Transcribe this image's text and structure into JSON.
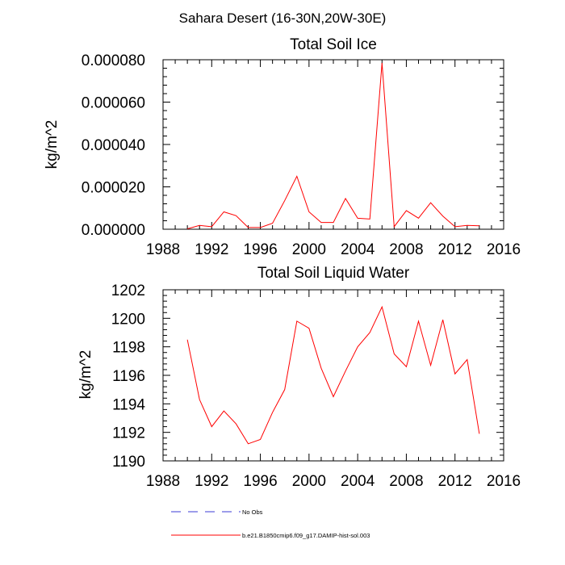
{
  "suptitle": "Sahara Desert (16-30N,20W-30E)",
  "legend": {
    "items": [
      {
        "label": "No Obs",
        "color": "#3b3bd6",
        "style": "dashed"
      },
      {
        "label": "b.e21.B1850cmip6.f09_g17.DAMIP-hist-sol.003",
        "color": "#ff0000",
        "style": "solid"
      }
    ]
  },
  "chart_data": [
    {
      "type": "line",
      "title": "Total Soil Ice",
      "ylabel": "kg/m^2",
      "xlabel": "",
      "xlim": [
        1988,
        2016
      ],
      "ylim": [
        0,
        8e-05
      ],
      "xticks": [
        1988,
        1992,
        1996,
        2000,
        2004,
        2008,
        2012,
        2016
      ],
      "xtick_labels": [
        "1988",
        "1992",
        "1996",
        "2000",
        "2004",
        "2008",
        "2012",
        "2016"
      ],
      "yticks": [
        0,
        2e-05,
        4e-05,
        6e-05,
        8e-05
      ],
      "ytick_labels": [
        "0.000000",
        "0.000020",
        "0.000040",
        "0.000060",
        "0.000080"
      ],
      "grid": false,
      "series": [
        {
          "name": "b.e21.B1850cmip6.f09_g17.DAMIP-hist-sol.003",
          "color": "#ff0000",
          "x": [
            1990,
            1991,
            1992,
            1993,
            1994,
            1995,
            1996,
            1997,
            1998,
            1999,
            2000,
            2001,
            2002,
            2003,
            2004,
            2005,
            2006,
            2007,
            2008,
            2009,
            2010,
            2011,
            2012,
            2013,
            2014
          ],
          "y": [
            2e-07,
            1.8e-06,
            1.2e-06,
            8.2e-06,
            6.4e-06,
            8e-07,
            8e-07,
            2.8e-06,
            1.35e-05,
            2.5e-05,
            8.2e-06,
            3.2e-06,
            3.2e-06,
            1.45e-05,
            5.2e-06,
            4.8e-06,
            7.85e-05,
            1.2e-06,
            8.8e-06,
            5.2e-06,
            1.25e-05,
            6.2e-06,
            1.2e-06,
            1.8e-06,
            1.6e-06
          ]
        }
      ]
    },
    {
      "type": "line",
      "title": "Total Soil Liquid Water",
      "ylabel": "kg/m^2",
      "xlabel": "",
      "xlim": [
        1988,
        2016
      ],
      "ylim": [
        1190,
        1202
      ],
      "xticks": [
        1988,
        1992,
        1996,
        2000,
        2004,
        2008,
        2012,
        2016
      ],
      "xtick_labels": [
        "1988",
        "1992",
        "1996",
        "2000",
        "2004",
        "2008",
        "2012",
        "2016"
      ],
      "yticks": [
        1190,
        1192,
        1194,
        1196,
        1198,
        1200,
        1202
      ],
      "ytick_labels": [
        "1190",
        "1192",
        "1194",
        "1196",
        "1198",
        "1200",
        "1202"
      ],
      "grid": false,
      "series": [
        {
          "name": "b.e21.B1850cmip6.f09_g17.DAMIP-hist-sol.003",
          "color": "#ff0000",
          "x": [
            1990,
            1991,
            1992,
            1993,
            1994,
            1995,
            1996,
            1997,
            1998,
            1999,
            2000,
            2001,
            2002,
            2003,
            2004,
            2005,
            2006,
            2007,
            2008,
            2009,
            2010,
            2011,
            2012,
            2013,
            2014
          ],
          "y": [
            1198.5,
            1194.3,
            1192.4,
            1193.5,
            1192.6,
            1191.2,
            1191.5,
            1193.4,
            1195.0,
            1199.8,
            1199.3,
            1196.5,
            1194.5,
            1196.3,
            1198.0,
            1199.0,
            1200.8,
            1197.5,
            1196.6,
            1199.8,
            1196.7,
            1199.9,
            1196.1,
            1197.1,
            1191.9
          ]
        }
      ]
    }
  ]
}
